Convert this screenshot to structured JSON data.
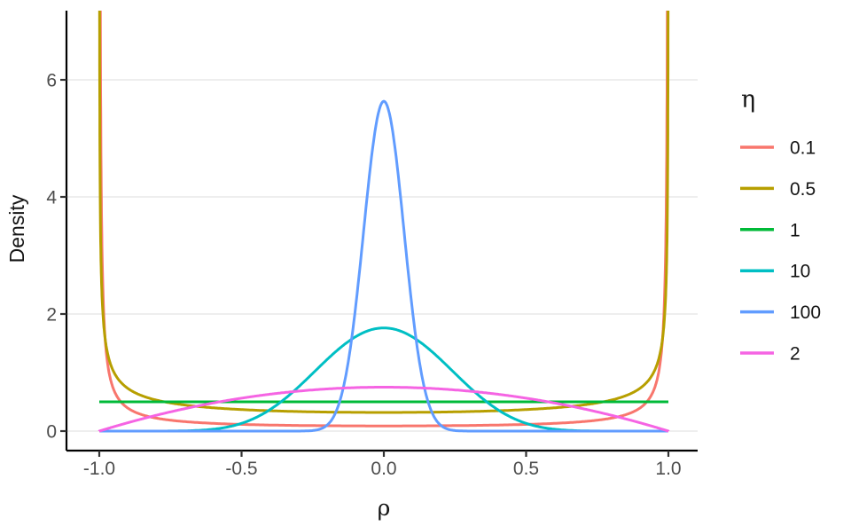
{
  "chart_data": {
    "type": "line",
    "title": "",
    "xlabel": "ρ",
    "ylabel": "Density",
    "x_ticks": {
      "values": [
        -1,
        -0.5,
        0,
        0.5,
        1
      ],
      "labels": [
        "-1.0",
        "-0.5",
        "0.0",
        "0.5",
        "1.0"
      ]
    },
    "y_ticks": {
      "values": [
        0,
        2,
        4,
        6
      ],
      "labels": [
        "0",
        "2",
        "4",
        "6"
      ]
    },
    "xlim": [
      -1.12,
      1.1
    ],
    "ylim": [
      -0.33,
      7.18
    ],
    "grid": {
      "horizontal_major": true,
      "vertical": false,
      "color": "#e9e9e9"
    },
    "axis_color": "#000000",
    "tick_color": "#333333",
    "tick_label_color": "#4d4d4d",
    "legend": {
      "title": "η",
      "position": "right"
    },
    "curve_formula": "f(ρ; η) = (1 − ρ²)^(η−1) / (B(η,η) · 2^(2η−1))  (LKJ(η) marginal density of ρ for a 2×2 correlation matrix, symmetric about ρ = 0)",
    "sample_rho": [
      0,
      0.25,
      0.5,
      0.75,
      0.9,
      0.99
    ],
    "series": [
      {
        "label": "0.1",
        "eta": 0.1,
        "color": "#F8766D",
        "density_at_sample_rho": [
          0.088,
          0.094,
          0.114,
          0.186,
          0.394,
          2.997
        ],
        "note": "U-shaped, diverges to ∞ at ρ = ±1 (clipped at panel top)"
      },
      {
        "label": "0.5",
        "eta": 0.5,
        "color": "#B79F00",
        "density_at_sample_rho": [
          0.318,
          0.329,
          0.368,
          0.481,
          0.73,
          2.256
        ],
        "note": "U-shaped, diverges to ∞ at ρ = ±1 (clipped at panel top)"
      },
      {
        "label": "1",
        "eta": 1,
        "color": "#00BA38",
        "density_at_sample_rho": [
          0.5,
          0.5,
          0.5,
          0.5,
          0.5,
          0.5
        ],
        "note": "uniform density 0.5 on [-1, 1]"
      },
      {
        "label": "10",
        "eta": 10,
        "color": "#00BFC4",
        "density_at_sample_rho": [
          1.762,
          0.986,
          0.132,
          0.001,
          0,
          0
        ],
        "note": "bell-shaped, peak 1.76 at ρ = 0"
      },
      {
        "label": "100",
        "eta": 100,
        "color": "#619CFF",
        "density_at_sample_rho": [
          5.636,
          0.0095,
          0,
          0,
          0,
          0
        ],
        "note": "narrow bell, peak 5.64 at ρ = 0"
      },
      {
        "label": "2",
        "eta": 2,
        "color": "#F564E3",
        "density_at_sample_rho": [
          0.75,
          0.703,
          0.563,
          0.328,
          0.143,
          0.015
        ],
        "note": "shallow dome, peak 0.75 at ρ = 0, zero at ρ = ±1"
      }
    ]
  }
}
